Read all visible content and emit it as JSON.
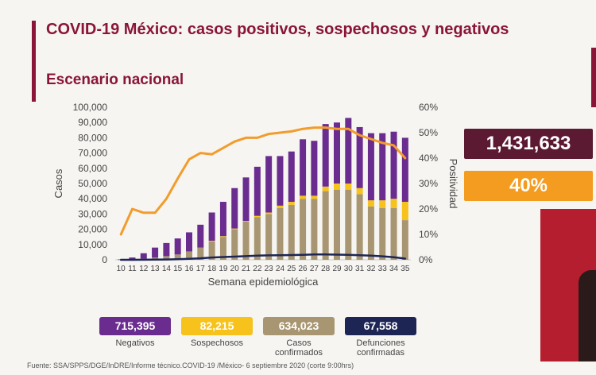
{
  "header": {
    "title": "COVID-19 México: casos positivos, sospechosos y negativos",
    "subtitle": "Escenario nacional"
  },
  "highlights": {
    "total": "1,431,633",
    "positivity": "40%"
  },
  "stats": [
    {
      "value": "715,395",
      "label": "Negativos",
      "label2": "",
      "color": "#6a2d8f"
    },
    {
      "value": "82,215",
      "label": "Sospechosos",
      "label2": "",
      "color": "#f6c21b"
    },
    {
      "value": "634,023",
      "label": "Casos",
      "label2": "confirmados",
      "color": "#a89672"
    },
    {
      "value": "67,558",
      "label": "Defunciones",
      "label2": "confirmadas",
      "color": "#1d2555"
    }
  ],
  "source": "Fuente: SSA/SPPS/DGE/InDRE/Informe técnico.COVID-19 /México- 6 septiembre 2020 (corte 9:00hrs)",
  "chart_data": {
    "type": "bar",
    "stacked": true,
    "xlabel": "Semana epidemiológica",
    "ylabel": "Casos",
    "y2label": "Positividad",
    "ylim": [
      0,
      100000
    ],
    "y2lim": [
      0,
      60
    ],
    "yticks": [
      "0",
      "10,000",
      "20,000",
      "30,000",
      "40,000",
      "50,000",
      "60,000",
      "70,000",
      "80,000",
      "90,000",
      "100,000"
    ],
    "y2ticks": [
      "0%",
      "10%",
      "20%",
      "30%",
      "40%",
      "50%",
      "60%"
    ],
    "categories": [
      "10",
      "11",
      "12",
      "13",
      "14",
      "15",
      "16",
      "17",
      "18",
      "19",
      "20",
      "21",
      "22",
      "23",
      "24",
      "25",
      "26",
      "27",
      "28",
      "29",
      "30",
      "31",
      "32",
      "33",
      "34",
      "35"
    ],
    "series": [
      {
        "name": "Casos confirmados",
        "color": "#a89672",
        "values": [
          50,
          300,
          800,
          1500,
          2400,
          3500,
          5500,
          8000,
          12000,
          15000,
          20000,
          25000,
          28000,
          30000,
          34000,
          36000,
          40000,
          40000,
          45000,
          46000,
          46000,
          43000,
          35000,
          34000,
          34000,
          26000
        ]
      },
      {
        "name": "Sospechosos",
        "color": "#f6c21b",
        "values": [
          0,
          0,
          0,
          0,
          0,
          0,
          0,
          0,
          500,
          500,
          500,
          500,
          800,
          1000,
          1500,
          2000,
          2000,
          2000,
          3000,
          4000,
          4000,
          4000,
          4000,
          5000,
          6000,
          12000
        ]
      },
      {
        "name": "Negativos",
        "color": "#6a2d8f",
        "values": [
          250,
          1200,
          3500,
          6500,
          8600,
          10500,
          12500,
          15000,
          18500,
          22500,
          26500,
          28500,
          32200,
          37000,
          32500,
          33000,
          37000,
          36000,
          41000,
          40000,
          43000,
          40000,
          44000,
          44000,
          44000,
          42000
        ]
      }
    ],
    "lines": [
      {
        "name": "Defunciones confirmadas",
        "color": "#1d2555",
        "axis": "left",
        "values": [
          0,
          0,
          50,
          100,
          200,
          400,
          700,
          1000,
          1500,
          1800,
          2100,
          2400,
          2700,
          2900,
          3000,
          3100,
          3300,
          3500,
          3500,
          3400,
          3300,
          3000,
          2700,
          2300,
          1700,
          800
        ]
      },
      {
        "name": "Positividad",
        "color": "#f29c2b",
        "axis": "right",
        "values": [
          10,
          20,
          18.5,
          18.5,
          24,
          32,
          39.5,
          42,
          41.5,
          44,
          46.5,
          48,
          48,
          49.5,
          50,
          50.5,
          51.5,
          52,
          52,
          51.5,
          51.5,
          49,
          47.5,
          46,
          45,
          40
        ]
      }
    ]
  }
}
